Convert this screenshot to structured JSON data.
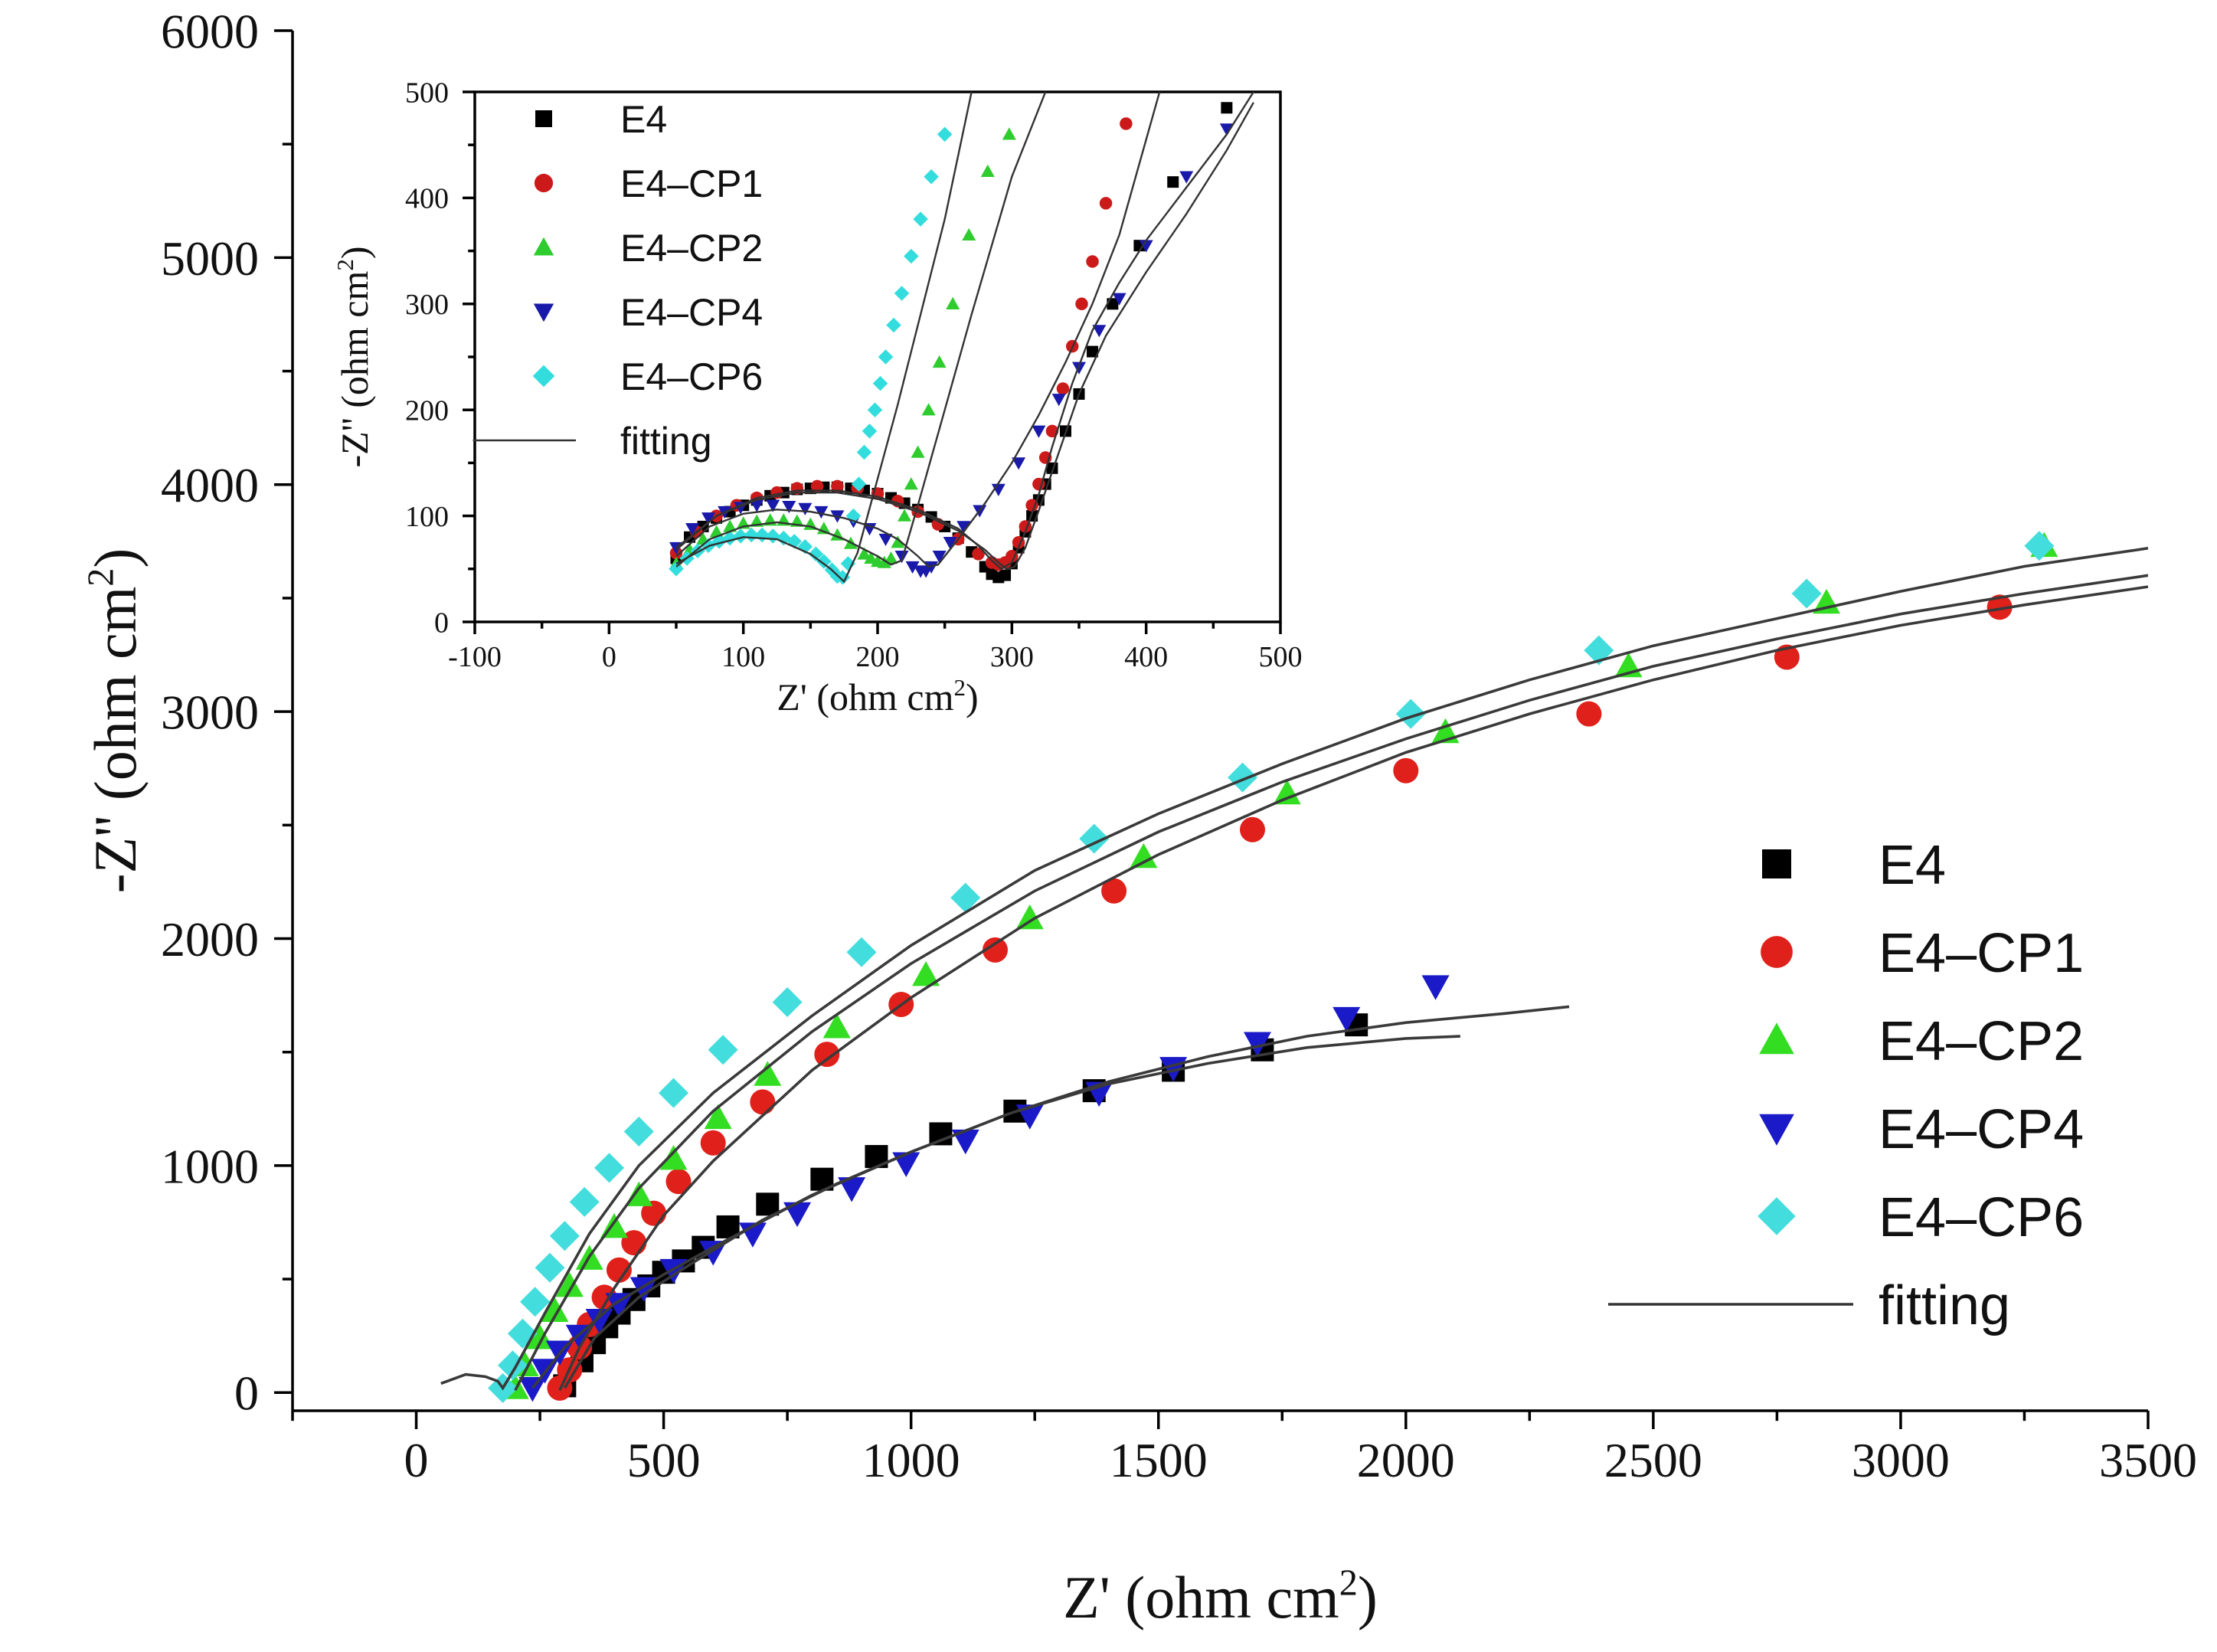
{
  "chart_data": [
    {
      "id": "main",
      "type": "scatter",
      "xlabel": "Z' (ohm cm",
      "xlabel_sup": "2",
      "xlabel_tail": ")",
      "ylabel": "-Z'' (ohm cm",
      "ylabel_sup": "2",
      "ylabel_tail": ")",
      "xlim": [
        -250,
        3500
      ],
      "ylim": [
        -80,
        6000
      ],
      "xticks": [
        0,
        500,
        1000,
        1500,
        2000,
        2500,
        3000,
        3500
      ],
      "xtick_labels": [
        "0",
        "500",
        "1000",
        "1500",
        "2000",
        "2500",
        "3000",
        "3500"
      ],
      "yticks": [
        0,
        1000,
        2000,
        3000,
        4000,
        5000,
        6000
      ],
      "ytick_labels": [
        "0",
        "1000",
        "2000",
        "3000",
        "4000",
        "5000",
        "6000"
      ],
      "legend_position": "right",
      "legend_fit_label": "fitting",
      "series": [
        {
          "name": "E4",
          "marker": "square",
          "color": "#000000",
          "x": [
            300,
            335,
            360,
            385,
            410,
            440,
            470,
            500,
            540,
            580,
            630,
            710,
            820,
            930,
            1060,
            1210,
            1370,
            1530,
            1710,
            1900
          ],
          "y": [
            30,
            140,
            220,
            290,
            350,
            410,
            470,
            530,
            580,
            640,
            730,
            830,
            940,
            1040,
            1140,
            1240,
            1330,
            1420,
            1510,
            1620
          ]
        },
        {
          "name": "E4-CP1",
          "marker": "circle",
          "color": "#e0201a",
          "x": [
            290,
            310,
            330,
            350,
            380,
            410,
            440,
            480,
            530,
            600,
            700,
            830,
            980,
            1170,
            1410,
            1690,
            2000,
            2370,
            2770,
            3200
          ],
          "y": [
            20,
            100,
            200,
            300,
            420,
            540,
            660,
            790,
            930,
            1100,
            1280,
            1490,
            1710,
            1950,
            2210,
            2480,
            2740,
            2990,
            3240,
            3460
          ]
        },
        {
          "name": "E4-CP2",
          "marker": "triangle-up",
          "color": "#33dd22",
          "x": [
            200,
            220,
            250,
            280,
            310,
            350,
            400,
            450,
            520,
            610,
            710,
            850,
            1030,
            1240,
            1470,
            1760,
            2080,
            2450,
            2850,
            3290
          ],
          "y": [
            20,
            120,
            240,
            360,
            470,
            590,
            730,
            870,
            1030,
            1210,
            1400,
            1610,
            1840,
            2090,
            2360,
            2640,
            2910,
            3200,
            3480,
            3730
          ]
        },
        {
          "name": "E4-CP4",
          "marker": "triangle-down",
          "color": "#1a1ac8",
          "x": [
            235,
            260,
            290,
            330,
            370,
            410,
            460,
            520,
            600,
            680,
            770,
            880,
            990,
            1110,
            1240,
            1380,
            1530,
            1700,
            1880,
            2060
          ],
          "y": [
            20,
            100,
            180,
            250,
            320,
            390,
            460,
            540,
            620,
            700,
            790,
            900,
            1010,
            1110,
            1220,
            1320,
            1430,
            1540,
            1650,
            1790
          ]
        },
        {
          "name": "E4-CP6",
          "marker": "diamond",
          "color": "#44dddd",
          "x": [
            175,
            195,
            215,
            240,
            270,
            300,
            340,
            390,
            450,
            520,
            620,
            750,
            900,
            1110,
            1370,
            1670,
            2010,
            2390,
            2810,
            3280
          ],
          "y": [
            20,
            120,
            260,
            400,
            550,
            690,
            840,
            990,
            1150,
            1320,
            1510,
            1720,
            1940,
            2180,
            2440,
            2710,
            2990,
            3270,
            3520,
            3730
          ]
        }
      ],
      "fitting": [
        {
          "x": [
            50,
            100,
            140,
            165,
            175,
            200,
            260,
            350,
            450,
            600,
            800,
            1000,
            1250,
            1500,
            1750,
            2000,
            2250,
            2500,
            2750,
            3000,
            3250,
            3500
          ],
          "y": [
            40,
            80,
            70,
            50,
            20,
            110,
            350,
            700,
            1000,
            1320,
            1660,
            1970,
            2300,
            2550,
            2770,
            2970,
            3140,
            3290,
            3410,
            3530,
            3640,
            3720
          ]
        },
        {
          "x": [
            200,
            260,
            350,
            450,
            600,
            800,
            1000,
            1250,
            1500,
            1750,
            2000,
            2250,
            2500,
            2750,
            3000,
            3250,
            3500
          ],
          "y": [
            10,
            260,
            600,
            900,
            1240,
            1590,
            1890,
            2210,
            2470,
            2690,
            2880,
            3050,
            3200,
            3320,
            3430,
            3520,
            3600
          ]
        },
        {
          "x": [
            290,
            330,
            400,
            500,
            600,
            800,
            1000,
            1250,
            1500,
            1750,
            2000,
            2250,
            2500,
            2750,
            3000,
            3250,
            3500
          ],
          "y": [
            10,
            200,
            460,
            780,
            1020,
            1420,
            1740,
            2090,
            2370,
            2610,
            2820,
            2990,
            3140,
            3270,
            3380,
            3470,
            3550
          ]
        },
        {
          "x": [
            235,
            300,
            400,
            500,
            600,
            800,
            1000,
            1200,
            1400,
            1600,
            1800,
            2000,
            2200,
            2330
          ],
          "y": [
            20,
            200,
            390,
            520,
            640,
            870,
            1060,
            1230,
            1370,
            1480,
            1570,
            1630,
            1670,
            1700
          ]
        },
        {
          "x": [
            300,
            360,
            450,
            550,
            700,
            850,
            1000,
            1200,
            1400,
            1600,
            1800,
            2000,
            2110
          ],
          "y": [
            20,
            240,
            420,
            560,
            760,
            920,
            1060,
            1230,
            1360,
            1450,
            1520,
            1560,
            1570
          ]
        }
      ]
    },
    {
      "id": "inset",
      "type": "scatter",
      "xlabel": "Z' (ohm cm",
      "xlabel_sup": "2",
      "xlabel_tail": ")",
      "ylabel": "-Z'' (ohm cm",
      "ylabel_sup": "2",
      "ylabel_tail": ")",
      "xlim": [
        -100,
        500
      ],
      "ylim": [
        0,
        500
      ],
      "xticks": [
        -100,
        0,
        100,
        200,
        300,
        400,
        500
      ],
      "xtick_labels": [
        "-100",
        "0",
        "100",
        "200",
        "300",
        "400",
        "500"
      ],
      "yticks": [
        0,
        100,
        200,
        300,
        400,
        500
      ],
      "ytick_labels": [
        "0",
        "100",
        "200",
        "300",
        "400",
        "500"
      ],
      "legend_position": "top-left",
      "legend_fit_label": "fitting",
      "series": [
        {
          "name": "E4",
          "marker": "square",
          "color": "#000000",
          "x": [
            50,
            60,
            70,
            80,
            90,
            100,
            110,
            120,
            130,
            140,
            150,
            160,
            170,
            180,
            190,
            200,
            210,
            220,
            230,
            240,
            250,
            260,
            270,
            280,
            285,
            290,
            295,
            300,
            305,
            310,
            315,
            320,
            325,
            330,
            340,
            350,
            360,
            375,
            395,
            420,
            460
          ],
          "y": [
            60,
            80,
            90,
            98,
            104,
            110,
            115,
            119,
            122,
            125,
            126,
            127,
            127,
            126,
            124,
            121,
            117,
            112,
            106,
            99,
            90,
            79,
            66,
            52,
            45,
            42,
            44,
            55,
            70,
            85,
            100,
            115,
            130,
            145,
            180,
            215,
            255,
            300,
            355,
            415,
            485
          ]
        },
        {
          "name": "E4-CP1",
          "marker": "circle",
          "color": "#cc1a1a",
          "x": [
            50,
            65,
            80,
            95,
            110,
            125,
            140,
            155,
            170,
            185,
            200,
            215,
            230,
            245,
            260,
            275,
            285,
            290,
            295,
            300,
            305,
            310,
            315,
            320,
            325,
            330,
            338,
            345,
            352,
            360,
            370,
            385
          ],
          "y": [
            65,
            85,
            100,
            110,
            117,
            122,
            126,
            128,
            128,
            126,
            121,
            114,
            104,
            92,
            78,
            64,
            56,
            54,
            56,
            62,
            75,
            90,
            110,
            130,
            155,
            180,
            220,
            260,
            300,
            340,
            395,
            470
          ]
        },
        {
          "name": "E4-CP2",
          "marker": "triangle-up",
          "color": "#2ecc2e",
          "x": [
            50,
            60,
            70,
            80,
            90,
            100,
            110,
            120,
            130,
            140,
            150,
            160,
            170,
            180,
            190,
            195,
            200,
            205,
            210,
            215,
            220,
            225,
            230,
            238,
            246,
            256,
            268,
            282,
            298
          ],
          "y": [
            55,
            68,
            78,
            85,
            90,
            93,
            95,
            96,
            96,
            95,
            92,
            88,
            82,
            74,
            64,
            60,
            57,
            56,
            60,
            75,
            100,
            130,
            160,
            200,
            245,
            300,
            365,
            425,
            460
          ]
        },
        {
          "name": "E4-CP4",
          "marker": "triangle-down",
          "color": "#1a1aaa",
          "x": [
            50,
            62,
            74,
            86,
            98,
            110,
            122,
            134,
            146,
            158,
            170,
            182,
            194,
            206,
            218,
            226,
            232,
            236,
            240,
            246,
            254,
            264,
            276,
            290,
            305,
            320,
            335,
            350,
            365,
            380,
            400,
            430,
            460
          ],
          "y": [
            70,
            88,
            98,
            104,
            108,
            110,
            110,
            109,
            107,
            104,
            100,
            95,
            88,
            78,
            62,
            52,
            48,
            48,
            52,
            62,
            75,
            90,
            105,
            125,
            150,
            180,
            210,
            240,
            275,
            305,
            355,
            420,
            465
          ]
        },
        {
          "name": "E4-CP6",
          "marker": "diamond",
          "color": "#33dddd",
          "x": [
            50,
            58,
            66,
            74,
            82,
            90,
            98,
            106,
            114,
            122,
            130,
            138,
            146,
            154,
            160,
            166,
            170,
            174,
            178,
            182,
            186,
            190,
            194,
            198,
            202,
            206,
            212,
            218,
            225,
            232,
            240,
            250
          ],
          "y": [
            50,
            60,
            67,
            72,
            76,
            79,
            81,
            82,
            82,
            81,
            79,
            76,
            71,
            64,
            57,
            49,
            43,
            42,
            55,
            100,
            130,
            160,
            180,
            200,
            225,
            250,
            280,
            310,
            345,
            380,
            420,
            460
          ]
        }
      ],
      "fitting": [
        {
          "x": [
            50,
            75,
            100,
            125,
            150,
            165,
            175,
            185,
            200,
            215,
            230,
            250,
            270
          ],
          "y": [
            55,
            72,
            80,
            78,
            64,
            50,
            38,
            65,
            135,
            205,
            280,
            380,
            500
          ]
        },
        {
          "x": [
            50,
            75,
            100,
            125,
            150,
            175,
            200,
            210,
            218,
            230,
            250,
            270,
            300,
            325
          ],
          "y": [
            52,
            78,
            90,
            94,
            90,
            78,
            62,
            54,
            58,
            110,
            200,
            290,
            420,
            500
          ]
        },
        {
          "x": [
            50,
            75,
            100,
            125,
            150,
            175,
            200,
            215,
            230,
            238,
            245,
            260,
            280,
            300,
            320,
            340,
            360,
            380,
            410
          ],
          "y": [
            62,
            90,
            102,
            106,
            104,
            98,
            88,
            78,
            62,
            52,
            54,
            78,
            112,
            150,
            195,
            245,
            300,
            365,
            500
          ]
        },
        {
          "x": [
            50,
            80,
            110,
            140,
            170,
            200,
            230,
            260,
            275,
            285,
            292,
            300,
            310,
            320,
            330,
            345,
            360,
            380,
            400,
            430,
            460,
            480
          ],
          "y": [
            68,
            100,
            117,
            124,
            124,
            118,
            106,
            88,
            72,
            58,
            50,
            56,
            85,
            120,
            165,
            225,
            275,
            320,
            360,
            410,
            460,
            500
          ]
        },
        {
          "x": [
            50,
            80,
            110,
            140,
            170,
            200,
            230,
            260,
            280,
            290,
            296,
            302,
            310,
            320,
            335,
            350,
            370,
            400,
            430,
            460,
            480
          ],
          "y": [
            70,
            100,
            115,
            122,
            122,
            116,
            104,
            86,
            68,
            56,
            50,
            52,
            70,
            105,
            160,
            215,
            270,
            330,
            385,
            445,
            490
          ]
        }
      ]
    }
  ]
}
